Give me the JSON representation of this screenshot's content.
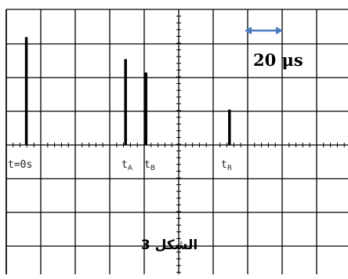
{
  "scale": {
    "label": "20 μs",
    "arrow_color": "#4a7cc0",
    "arrow_icon": "double-headed-arrow"
  },
  "figure_label": "الشكل 3",
  "markers": [
    {
      "main": "t=0s",
      "sub": ""
    },
    {
      "main": "t",
      "sub": "A"
    },
    {
      "main": "t",
      "sub": "B"
    },
    {
      "main": "t",
      "sub": "R"
    }
  ],
  "chart_data": {
    "type": "bar",
    "categories": [
      "t=0s",
      "tA",
      "tB",
      "tR"
    ],
    "x_divisions": [
      0.4,
      3.3,
      3.8,
      6.2
    ],
    "values": [
      3.2,
      2.55,
      2.15,
      1.05
    ],
    "xlabel": "",
    "ylabel": "",
    "time_per_division": "20 μs",
    "grid": true,
    "divisions": {
      "horizontal": 10,
      "vertical": 8
    }
  },
  "colors": {
    "grid": "#000000",
    "pulse": "#000000",
    "background": "#ffffff"
  }
}
